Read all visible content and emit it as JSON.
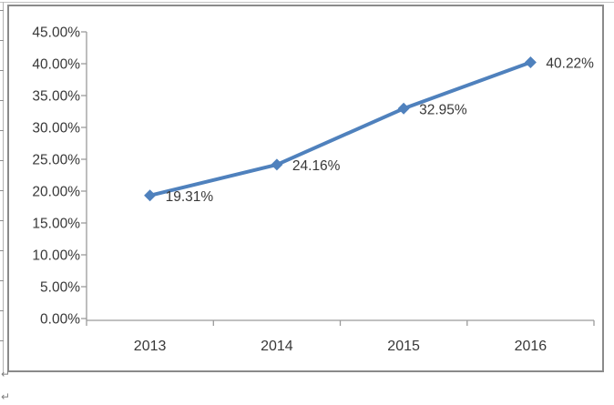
{
  "chart_data": {
    "type": "line",
    "title": "",
    "xlabel": "",
    "ylabel": "",
    "categories": [
      "2013",
      "2014",
      "2015",
      "2016"
    ],
    "values": [
      19.31,
      24.16,
      32.95,
      40.22
    ],
    "data_labels": [
      "19.31%",
      "24.16%",
      "32.95%",
      "40.22%"
    ],
    "y_tick_labels": [
      "45.00%",
      "40.00%",
      "35.00%",
      "30.00%",
      "25.00%",
      "20.00%",
      "15.00%",
      "10.00%",
      "5.00%",
      "0.00%"
    ],
    "ylim": [
      0,
      45
    ],
    "grid": false,
    "legend": "none",
    "marker": "diamond",
    "colors": {
      "line": "#4F81BD",
      "marker": "#4F81BD",
      "axis": "#9a9a9a",
      "text": "#383838",
      "chart_border": "#8a8a8a"
    }
  },
  "decorations": {
    "paragraph_marks": [
      "↵",
      "↵"
    ]
  }
}
